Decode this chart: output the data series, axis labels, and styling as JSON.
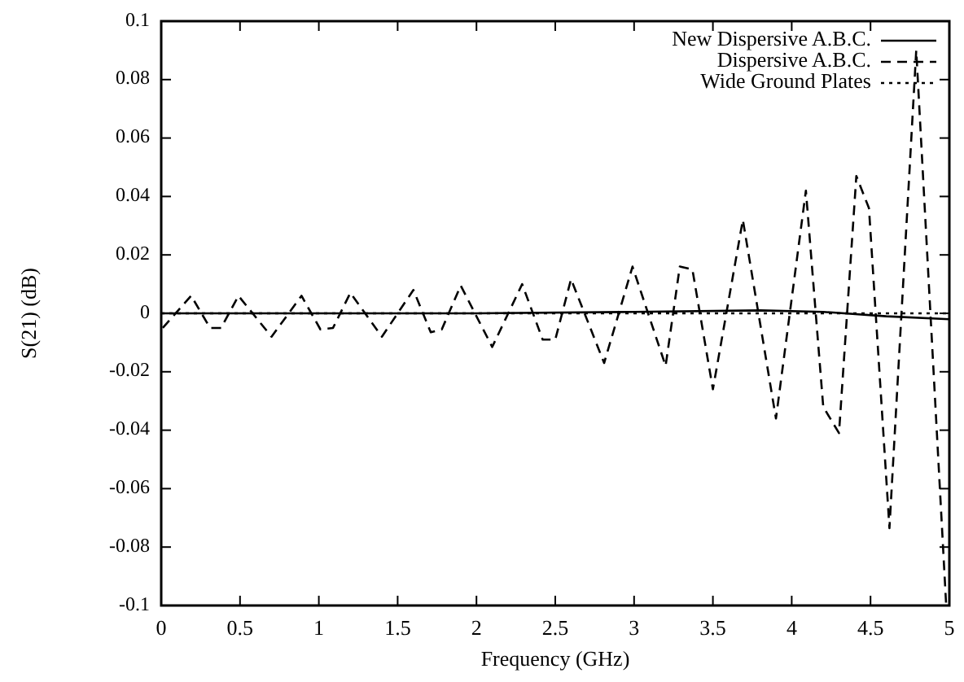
{
  "chart_data": {
    "type": "line",
    "xlabel": "Frequency (GHz)",
    "ylabel": "S(21) (dB)",
    "xlim": [
      0,
      5
    ],
    "ylim": [
      -0.1,
      0.1
    ],
    "xticks": [
      0,
      0.5,
      1,
      1.5,
      2,
      2.5,
      3,
      3.5,
      4,
      4.5,
      5
    ],
    "yticks": [
      -0.1,
      -0.08,
      -0.06,
      -0.04,
      -0.02,
      0,
      0.02,
      0.04,
      0.06,
      0.08,
      0.1
    ],
    "grid": false,
    "legend": "top right",
    "marker": "none",
    "series": [
      {
        "name": "New Dispersive A.B.C.",
        "color": "#000000",
        "line_style": "solid",
        "x": [
          0,
          1,
          2,
          3,
          3.8,
          4.2,
          4.6,
          5
        ],
        "values": [
          0,
          0,
          0,
          0.0005,
          0.001,
          0.0005,
          -0.001,
          -0.002
        ]
      },
      {
        "name": "Dispersive A.B.C.",
        "color": "#000000",
        "line_style": "dashed",
        "x": [
          0.01,
          0.19,
          0.31,
          0.38,
          0.49,
          0.7,
          0.89,
          1.01,
          1.09,
          1.2,
          1.4,
          1.6,
          1.71,
          1.78,
          1.9,
          2.1,
          2.29,
          2.42,
          2.5,
          2.6,
          2.81,
          2.99,
          3.2,
          3.29,
          3.37,
          3.5,
          3.69,
          3.9,
          4.09,
          4.2,
          4.3,
          4.41,
          4.49,
          4.62,
          4.79,
          4.98
        ],
        "values": [
          -0.005,
          0.006,
          -0.005,
          -0.005,
          0.006,
          -0.008,
          0.006,
          -0.0055,
          -0.005,
          0.007,
          -0.008,
          0.008,
          -0.0065,
          -0.0055,
          0.0095,
          -0.0115,
          0.01,
          -0.009,
          -0.009,
          0.0117,
          -0.017,
          0.016,
          -0.018,
          0.016,
          0.015,
          -0.026,
          0.032,
          -0.036,
          0.042,
          -0.032,
          -0.041,
          0.047,
          0.036,
          -0.0735,
          0.09,
          -0.1
        ]
      },
      {
        "name": "Wide Ground Plates",
        "color": "#000000",
        "line_style": "dotted",
        "x": [
          0,
          4.5,
          5
        ],
        "values": [
          0,
          0,
          0
        ]
      }
    ]
  }
}
